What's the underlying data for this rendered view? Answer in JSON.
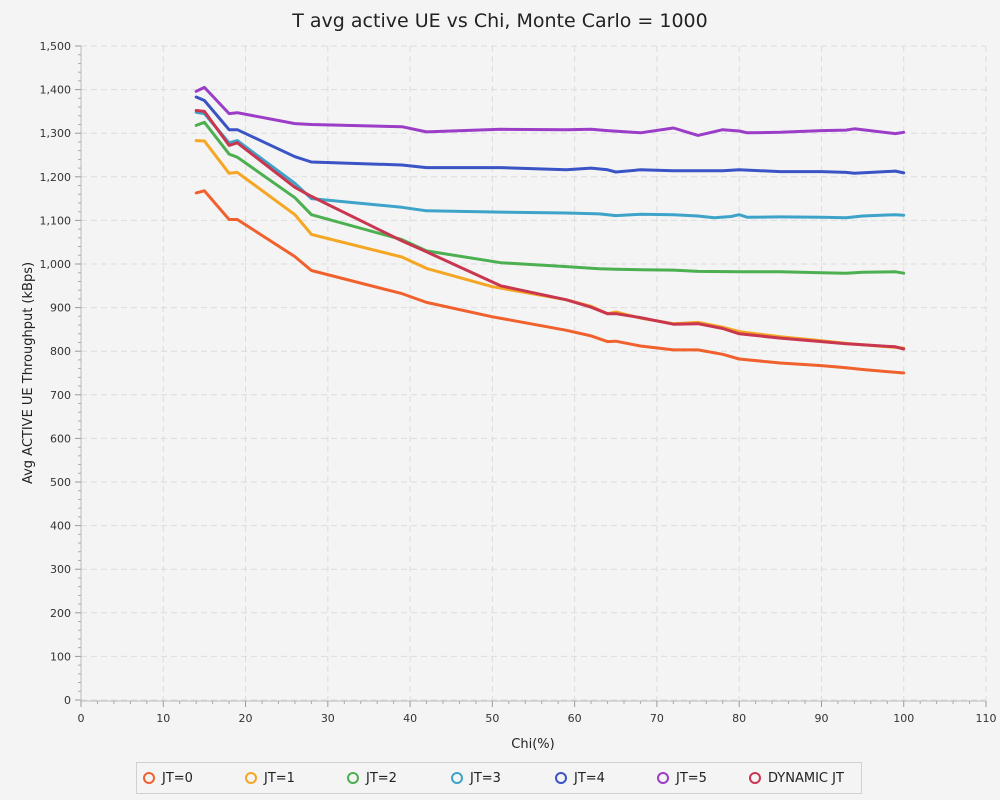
{
  "chart_data": {
    "type": "line",
    "title": "T avg active UE vs Chi, Monte Carlo = 1000",
    "xlabel": "Chi(%)",
    "ylabel": "Avg ACTIVE UE Throughput (kBps)",
    "xlim": [
      0,
      110
    ],
    "ylim": [
      0,
      1500
    ],
    "x_ticks": [
      "0",
      "10",
      "20",
      "30",
      "40",
      "50",
      "60",
      "70",
      "80",
      "90",
      "100",
      "110"
    ],
    "y_ticks": [
      "0",
      "100",
      "200",
      "300",
      "400",
      "500",
      "600",
      "700",
      "800",
      "900",
      "1,000",
      "1,100",
      "1,200",
      "1,300",
      "1,400",
      "1,500"
    ],
    "grid": true,
    "legend_position": "bottom",
    "series": [
      {
        "name": "JT=0",
        "color": "#f0612e",
        "points": [
          [
            14,
            1163
          ],
          [
            15,
            1168
          ],
          [
            18,
            1102
          ],
          [
            19,
            1102
          ],
          [
            26,
            1017
          ],
          [
            28,
            985
          ],
          [
            39,
            932
          ],
          [
            42,
            912
          ],
          [
            50,
            879
          ],
          [
            59,
            848
          ],
          [
            62,
            835
          ],
          [
            64,
            822
          ],
          [
            65,
            823
          ],
          [
            68,
            812
          ],
          [
            72,
            803
          ],
          [
            75,
            803
          ],
          [
            78,
            793
          ],
          [
            80,
            782
          ],
          [
            85,
            773
          ],
          [
            90,
            767
          ],
          [
            93,
            762
          ],
          [
            95,
            758
          ],
          [
            100,
            750
          ]
        ]
      },
      {
        "name": "JT=1",
        "color": "#f5a623",
        "points": [
          [
            14,
            1283
          ],
          [
            15,
            1282
          ],
          [
            18,
            1208
          ],
          [
            19,
            1210
          ],
          [
            26,
            1113
          ],
          [
            28,
            1068
          ],
          [
            39,
            1016
          ],
          [
            42,
            990
          ],
          [
            50,
            948
          ],
          [
            59,
            918
          ],
          [
            62,
            903
          ],
          [
            64,
            886
          ],
          [
            65,
            890
          ],
          [
            68,
            876
          ],
          [
            72,
            863
          ],
          [
            75,
            866
          ],
          [
            78,
            855
          ],
          [
            80,
            845
          ],
          [
            85,
            833
          ],
          [
            90,
            824
          ],
          [
            93,
            818
          ],
          [
            95,
            815
          ],
          [
            100,
            807
          ]
        ]
      },
      {
        "name": "JT=2",
        "color": "#4caf50",
        "points": [
          [
            14,
            1318
          ],
          [
            15,
            1325
          ],
          [
            18,
            1252
          ],
          [
            19,
            1245
          ],
          [
            26,
            1152
          ],
          [
            28,
            1113
          ],
          [
            39,
            1056
          ],
          [
            42,
            1030
          ],
          [
            51,
            1003
          ],
          [
            59,
            994
          ],
          [
            63,
            989
          ],
          [
            65,
            988
          ],
          [
            68,
            987
          ],
          [
            72,
            986
          ],
          [
            75,
            983
          ],
          [
            80,
            982
          ],
          [
            85,
            982
          ],
          [
            90,
            980
          ],
          [
            93,
            979
          ],
          [
            95,
            981
          ],
          [
            99,
            982
          ],
          [
            100,
            979
          ]
        ]
      },
      {
        "name": "JT=3",
        "color": "#3ea3c9",
        "points": [
          [
            14,
            1348
          ],
          [
            15,
            1345
          ],
          [
            18,
            1278
          ],
          [
            19,
            1283
          ],
          [
            26,
            1185
          ],
          [
            28,
            1150
          ],
          [
            39,
            1130
          ],
          [
            42,
            1122
          ],
          [
            51,
            1119
          ],
          [
            59,
            1117
          ],
          [
            63,
            1115
          ],
          [
            65,
            1111
          ],
          [
            68,
            1114
          ],
          [
            72,
            1113
          ],
          [
            75,
            1110
          ],
          [
            77,
            1106
          ],
          [
            79,
            1109
          ],
          [
            80,
            1113
          ],
          [
            81,
            1107
          ],
          [
            85,
            1108
          ],
          [
            90,
            1107
          ],
          [
            93,
            1106
          ],
          [
            95,
            1110
          ],
          [
            99,
            1113
          ],
          [
            100,
            1112
          ]
        ]
      },
      {
        "name": "JT=4",
        "color": "#3a53c5",
        "points": [
          [
            14,
            1383
          ],
          [
            15,
            1375
          ],
          [
            18,
            1308
          ],
          [
            19,
            1308
          ],
          [
            26,
            1246
          ],
          [
            28,
            1234
          ],
          [
            39,
            1227
          ],
          [
            42,
            1221
          ],
          [
            51,
            1221
          ],
          [
            59,
            1216
          ],
          [
            62,
            1220
          ],
          [
            64,
            1216
          ],
          [
            65,
            1211
          ],
          [
            68,
            1216
          ],
          [
            72,
            1214
          ],
          [
            75,
            1214
          ],
          [
            78,
            1214
          ],
          [
            80,
            1216
          ],
          [
            85,
            1212
          ],
          [
            90,
            1212
          ],
          [
            93,
            1210
          ],
          [
            94,
            1208
          ],
          [
            99,
            1213
          ],
          [
            100,
            1209
          ]
        ]
      },
      {
        "name": "JT=5",
        "color": "#9c3dc8",
        "points": [
          [
            14,
            1396
          ],
          [
            15,
            1405
          ],
          [
            18,
            1345
          ],
          [
            19,
            1347
          ],
          [
            26,
            1322
          ],
          [
            28,
            1320
          ],
          [
            39,
            1315
          ],
          [
            42,
            1303
          ],
          [
            51,
            1309
          ],
          [
            59,
            1308
          ],
          [
            62,
            1309
          ],
          [
            64,
            1306
          ],
          [
            68,
            1301
          ],
          [
            72,
            1312
          ],
          [
            75,
            1295
          ],
          [
            78,
            1308
          ],
          [
            80,
            1305
          ],
          [
            81,
            1301
          ],
          [
            85,
            1302
          ],
          [
            90,
            1306
          ],
          [
            93,
            1307
          ],
          [
            94,
            1310
          ],
          [
            99,
            1299
          ],
          [
            100,
            1302
          ]
        ]
      },
      {
        "name": "DYNAMIC JT",
        "color": "#c8374f",
        "points": [
          [
            14,
            1352
          ],
          [
            15,
            1350
          ],
          [
            18,
            1272
          ],
          [
            19,
            1278
          ],
          [
            26,
            1176
          ],
          [
            28,
            1155
          ],
          [
            39,
            1053
          ],
          [
            42,
            1028
          ],
          [
            51,
            950
          ],
          [
            59,
            918
          ],
          [
            62,
            901
          ],
          [
            64,
            886
          ],
          [
            65,
            886
          ],
          [
            68,
            877
          ],
          [
            72,
            862
          ],
          [
            75,
            863
          ],
          [
            78,
            852
          ],
          [
            80,
            840
          ],
          [
            85,
            830
          ],
          [
            90,
            822
          ],
          [
            93,
            817
          ],
          [
            95,
            815
          ],
          [
            99,
            810
          ],
          [
            100,
            805
          ]
        ]
      }
    ]
  }
}
